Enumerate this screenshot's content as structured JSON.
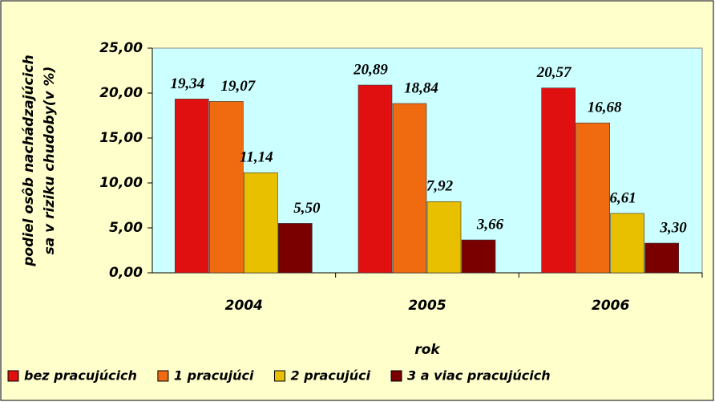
{
  "chart_data": {
    "type": "bar",
    "y_label": [
      "podiel osôb nachádzajúcich",
      "sa v riziku chudoby(v %)"
    ],
    "x_label": "rok",
    "categories": [
      "2004",
      "2005",
      "2006"
    ],
    "series": [
      {
        "name": "bez pracujúcich",
        "color": "#e01010",
        "values": [
          19.34,
          20.89,
          20.57
        ],
        "value_labels": [
          "19,34",
          "20,89",
          "20,57"
        ]
      },
      {
        "name": "1 pracujúci",
        "color": "#f06a10",
        "values": [
          19.07,
          18.84,
          16.68
        ],
        "value_labels": [
          "19,07",
          "18,84",
          "16,68"
        ]
      },
      {
        "name": "2 pracujúci",
        "color": "#e8c000",
        "values": [
          11.14,
          7.92,
          6.61
        ],
        "value_labels": [
          "11,14",
          "7,92",
          "6,61"
        ]
      },
      {
        "name": "3 a viac pracujúcich",
        "color": "#7a0000",
        "values": [
          5.5,
          3.66,
          3.3
        ],
        "value_labels": [
          "5,50",
          "3,66",
          "3,30"
        ]
      }
    ],
    "ylim": [
      0,
      25
    ],
    "yticks": [
      {
        "value": 0,
        "label": "0,00"
      },
      {
        "value": 5,
        "label": "5,00"
      },
      {
        "value": 10,
        "label": "10,00"
      },
      {
        "value": 15,
        "label": "15,00"
      },
      {
        "value": 20,
        "label": "20,00"
      },
      {
        "value": 25,
        "label": "25,00"
      }
    ]
  }
}
